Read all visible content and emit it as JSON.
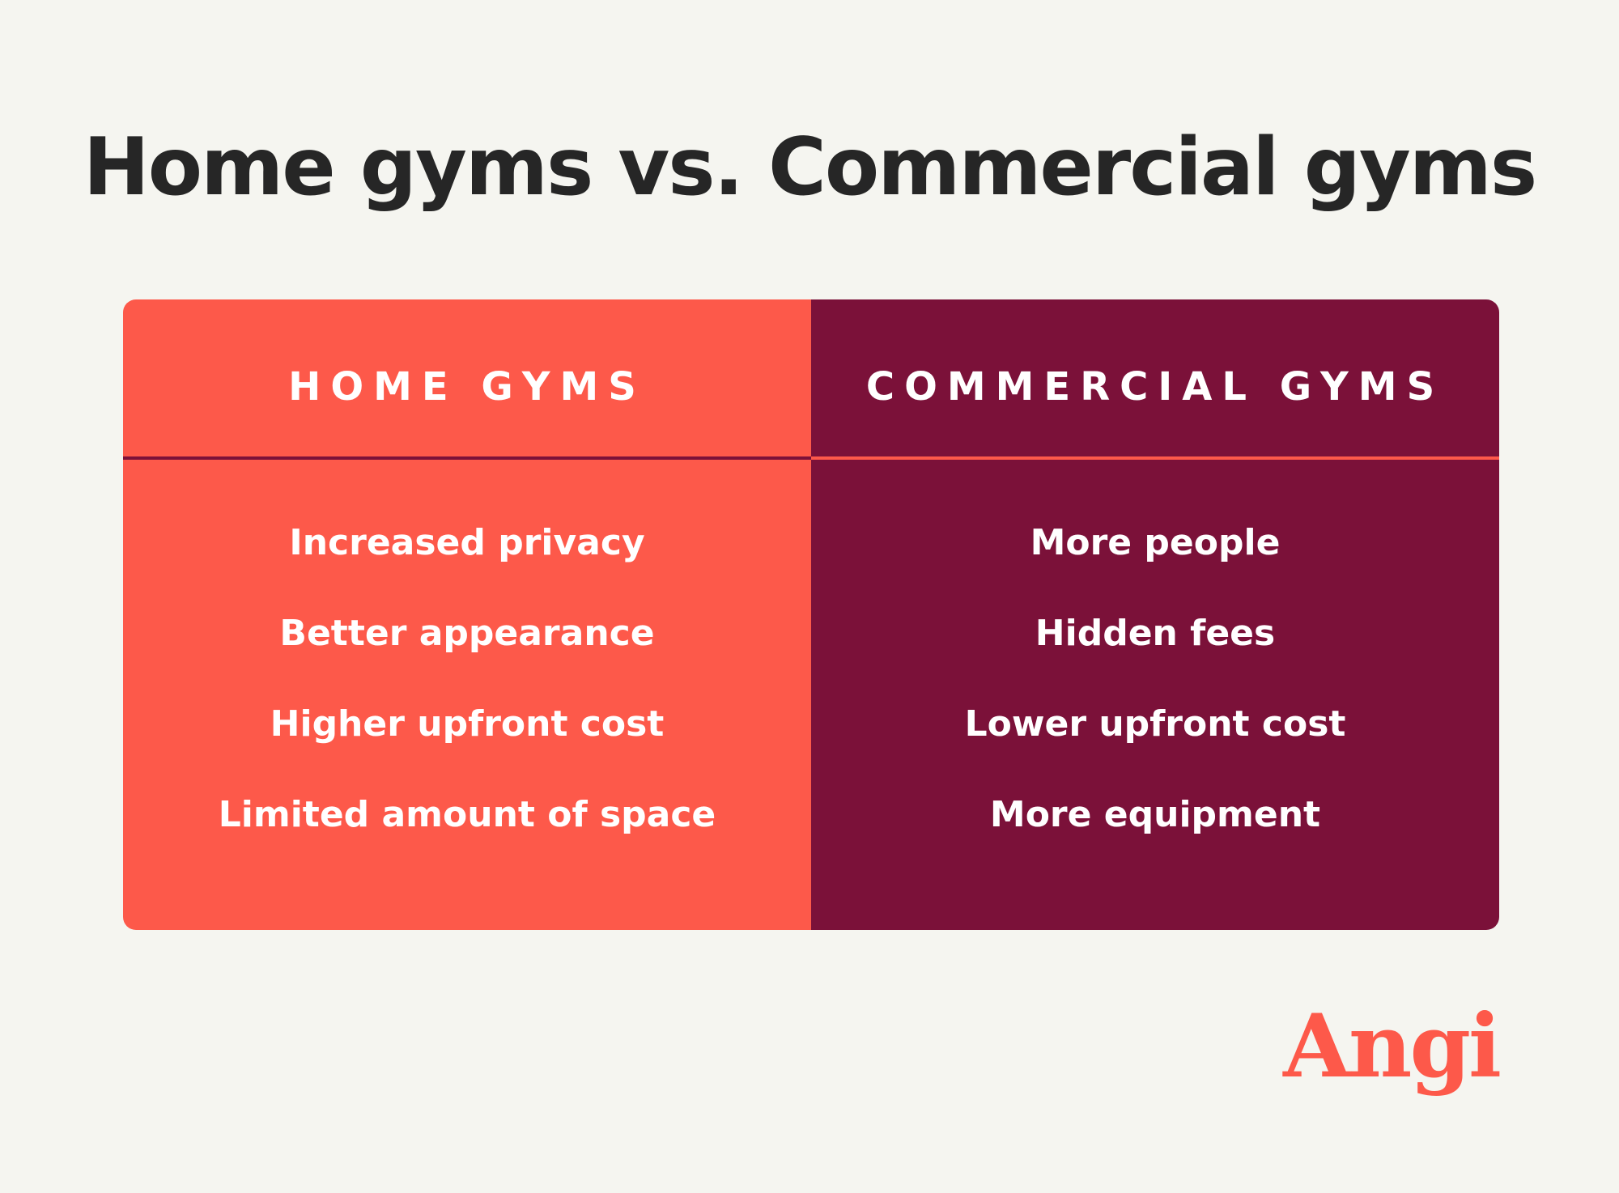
{
  "title": "Home gyms vs. Commercial gyms",
  "columns": [
    {
      "heading": "HOME GYMS",
      "items": [
        "Increased privacy",
        "Better appearance",
        "Higher upfront cost",
        "Limited amount of space"
      ]
    },
    {
      "heading": "COMMERCIAL GYMS",
      "items": [
        "More people",
        "Hidden fees",
        "Lower upfront cost",
        "More equipment"
      ]
    }
  ],
  "logo": "Angi"
}
